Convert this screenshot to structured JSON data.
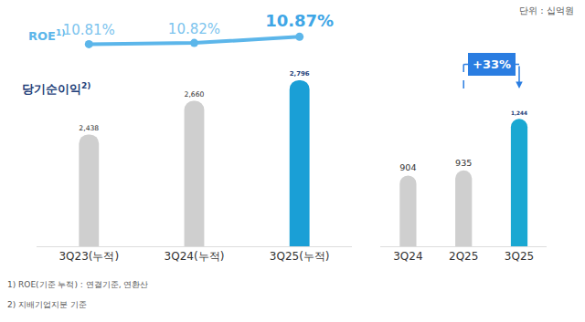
{
  "chart_data": [
    {
      "type": "bar",
      "subtitle": "단위 : 십억원",
      "categories": [
        "3Q23(누적)",
        "3Q24(누적)",
        "3Q25(누적)"
      ],
      "series": [
        {
          "name": "당기순이익2)",
          "type": "bar",
          "values": [
            2438,
            2660,
            2796
          ],
          "value_labels": [
            "2,438",
            "2,660",
            "2,796"
          ],
          "colors": [
            "#cfcfcf",
            "#cfcfcf",
            "#1a9fd6"
          ]
        },
        {
          "name": "ROE1)",
          "type": "line",
          "axis": "y2",
          "color": "#5cb6ea",
          "marker": "circle",
          "values": [
            10.81,
            10.82,
            10.87
          ],
          "value_labels": [
            "10.81%",
            "10.82%",
            "10.87%"
          ]
        }
      ],
      "ylim": [
        1700,
        2900
      ],
      "y2lim": [
        10.75,
        10.96
      ],
      "data_labels": true,
      "tick_labels": "x",
      "footnotes": [
        "1) ROE(기준 누적) : 연결기준, 연환산",
        "2) 지배기업지분 기준"
      ]
    },
    {
      "type": "bar",
      "categories": [
        "3Q24",
        "2Q25",
        "3Q25"
      ],
      "values": [
        904,
        935,
        1244
      ],
      "value_labels": [
        "904",
        "935",
        "1,244"
      ],
      "colors": [
        "#cfcfcf",
        "#cfcfcf",
        "#1aa8d2"
      ],
      "ylim": [
        480,
        1570
      ],
      "data_labels": true,
      "tick_labels": "x",
      "annotations": [
        {
          "text": "+33%",
          "from": "2Q25",
          "to": "3Q25"
        }
      ]
    }
  ]
}
